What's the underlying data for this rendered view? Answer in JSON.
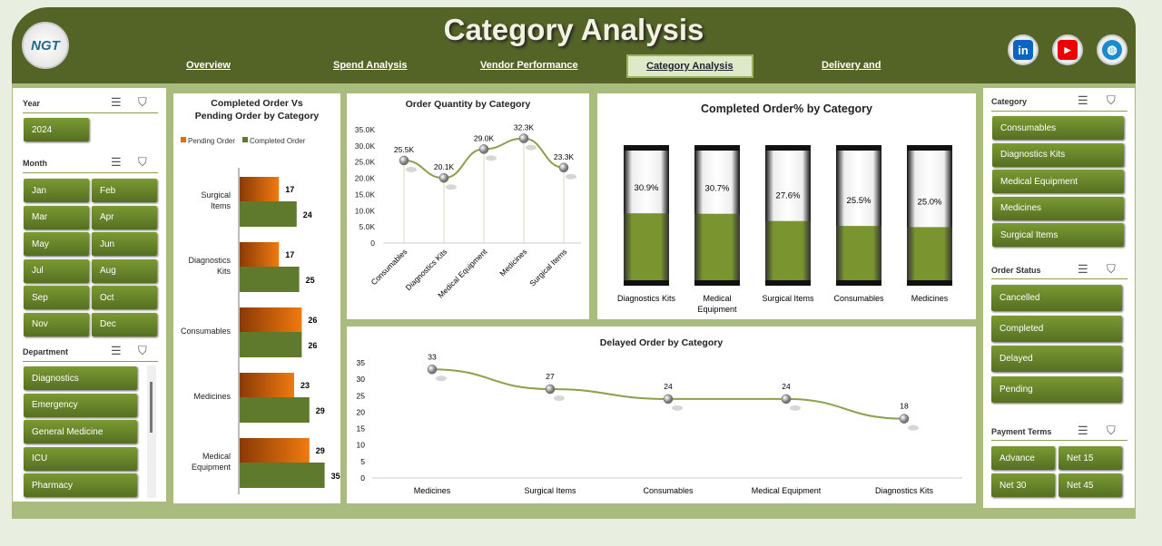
{
  "header": {
    "title": "Category Analysis",
    "logo_text": "NGT",
    "nav": [
      "Overview",
      "Spend Analysis",
      "Vendor Performance",
      "Category Analysis",
      "Delivery and"
    ],
    "active_nav": "Category Analysis",
    "social": [
      "linkedin-icon",
      "youtube-icon",
      "globe-icon"
    ]
  },
  "left": {
    "year_label": "Year",
    "years": [
      "2024"
    ],
    "month_label": "Month",
    "months": [
      "Jan",
      "Feb",
      "Mar",
      "Apr",
      "May",
      "Jun",
      "Jul",
      "Aug",
      "Sep",
      "Oct",
      "Nov",
      "Dec"
    ],
    "department_label": "Department",
    "departments": [
      "Diagnostics",
      "Emergency",
      "General Medicine",
      "ICU",
      "Pharmacy"
    ]
  },
  "right": {
    "category_label": "Category",
    "categories": [
      "Consumables",
      "Diagnostics Kits",
      "Medical Equipment",
      "Medicines",
      "Surgical Items"
    ],
    "status_label": "Order Status",
    "statuses": [
      "Cancelled",
      "Completed",
      "Delayed",
      "Pending"
    ],
    "terms_label": "Payment Terms",
    "terms": [
      "Advance",
      "Net 15",
      "Net 30",
      "Net 45"
    ]
  },
  "colors": {
    "header": "#546427",
    "button": "#6b8a2a",
    "pending": "#e46c0a",
    "completed": "#5f7a2c",
    "line": "#8aa04a"
  },
  "chart_data": [
    {
      "type": "bar",
      "orientation": "horizontal",
      "title": "Completed Order Vs Pending Order by Category",
      "categories": [
        "Surgical Items",
        "Diagnostics Kits",
        "Consumables",
        "Medicines",
        "Medical Equipment"
      ],
      "series": [
        {
          "name": "Pending Order",
          "values": [
            17,
            17,
            26,
            23,
            29
          ]
        },
        {
          "name": "Completed Order",
          "values": [
            24,
            25,
            26,
            29,
            35
          ]
        }
      ],
      "legend": "top"
    },
    {
      "type": "line",
      "title": "Order Quantity by Category",
      "categories": [
        "Consumables",
        "Diagnostics Kits",
        "Medical Equipment",
        "Medicines",
        "Surgical Items"
      ],
      "values": [
        25500,
        20100,
        29000,
        32300,
        23300
      ],
      "labels": [
        "25.5K",
        "20.1K",
        "29.0K",
        "32.3K",
        "23.3K"
      ],
      "yticks": [
        "0",
        "5.0K",
        "10.0K",
        "15.0K",
        "20.0K",
        "25.0K",
        "30.0K",
        "35.0K"
      ],
      "ylim": [
        0,
        35000
      ]
    },
    {
      "type": "bar",
      "title": "Completed Order% by Category",
      "categories": [
        "Diagnostics Kits",
        "Medical Equipment",
        "Surgical Items",
        "Consumables",
        "Medicines"
      ],
      "values": [
        30.9,
        30.7,
        27.6,
        25.5,
        25.0
      ],
      "labels": [
        "30.9%",
        "30.7%",
        "27.6%",
        "25.5%",
        "25.0%"
      ],
      "ylim": [
        0,
        100
      ]
    },
    {
      "type": "line",
      "title": "Delayed Order by Category",
      "categories": [
        "Medicines",
        "Surgical Items",
        "Consumables",
        "Medical Equipment",
        "Diagnostics Kits"
      ],
      "values": [
        33,
        27,
        24,
        24,
        18
      ],
      "yticks": [
        "0",
        "5",
        "10",
        "15",
        "20",
        "25",
        "30",
        "35"
      ],
      "ylim": [
        0,
        35
      ]
    }
  ]
}
